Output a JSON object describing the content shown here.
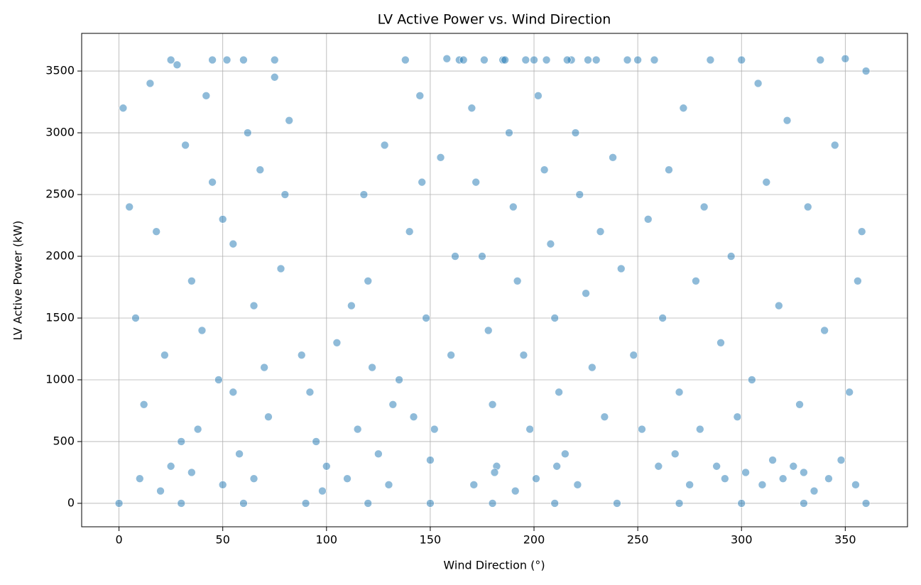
{
  "chart_data": {
    "type": "scatter",
    "title": "LV Active Power vs. Wind Direction",
    "x_label": "Wind Direction (°)",
    "y_label": "LV Active Power (kW)",
    "color": "#1f77b4",
    "alpha": 0.5,
    "grid": true,
    "xlim": [
      -18,
      380
    ],
    "ylim": [
      -190,
      3805
    ],
    "xticks": [
      0,
      50,
      100,
      150,
      200,
      250,
      300,
      350
    ],
    "yticks": [
      0,
      500,
      1000,
      1500,
      2000,
      2500,
      3000,
      3500
    ],
    "x": [
      0,
      30,
      60,
      90,
      120,
      150,
      180,
      210,
      240,
      270,
      300,
      330,
      360,
      2,
      5,
      8,
      12,
      15,
      18,
      22,
      25,
      28,
      32,
      35,
      38,
      42,
      45,
      48,
      52,
      55,
      58,
      62,
      65,
      68,
      72,
      75,
      78,
      82,
      20,
      30,
      40,
      50,
      60,
      70,
      80,
      10,
      25,
      45,
      55,
      65,
      75,
      35,
      50,
      88,
      92,
      95,
      100,
      105,
      110,
      115,
      118,
      120,
      125,
      128,
      130,
      135,
      138,
      140,
      142,
      145,
      148,
      150,
      155,
      158,
      160,
      162,
      112,
      132,
      146,
      98,
      122,
      152,
      164,
      166,
      170,
      172,
      175,
      178,
      180,
      182,
      185,
      188,
      190,
      192,
      195,
      198,
      200,
      202,
      205,
      208,
      210,
      212,
      215,
      218,
      220,
      222,
      225,
      228,
      230,
      232,
      234,
      176,
      186,
      196,
      206,
      216,
      226,
      171,
      181,
      191,
      201,
      211,
      221,
      238,
      242,
      245,
      248,
      250,
      252,
      255,
      258,
      260,
      262,
      265,
      268,
      270,
      272,
      275,
      278,
      280,
      282,
      285,
      288,
      290,
      292,
      295,
      298,
      300,
      302,
      305,
      308,
      310,
      312,
      315,
      318,
      320,
      322,
      325,
      328,
      330,
      332,
      335,
      338,
      340,
      342,
      345,
      348,
      350,
      352,
      355,
      358,
      360,
      356
    ],
    "y": [
      0,
      0,
      0,
      0,
      0,
      0,
      0,
      0,
      0,
      0,
      0,
      0,
      0,
      3200,
      2400,
      1500,
      800,
      3400,
      2200,
      1200,
      300,
      3550,
      2900,
      1800,
      600,
      3300,
      2600,
      1000,
      3590,
      2100,
      400,
      3000,
      1600,
      2700,
      700,
      3450,
      1900,
      3100,
      100,
      500,
      1400,
      2300,
      3590,
      1100,
      2500,
      200,
      3590,
      3590,
      900,
      200,
      3590,
      250,
      150,
      1200,
      900,
      500,
      300,
      1300,
      200,
      600,
      2500,
      1800,
      400,
      2900,
      150,
      1000,
      3590,
      2200,
      700,
      3300,
      1500,
      350,
      2800,
      3600,
      1200,
      2000,
      1600,
      800,
      2600,
      100,
      1100,
      600,
      3590,
      3590,
      3200,
      2600,
      2000,
      1400,
      800,
      300,
      3590,
      3000,
      2400,
      1800,
      1200,
      600,
      3590,
      3300,
      2700,
      2100,
      1500,
      900,
      400,
      3590,
      3000,
      2500,
      1700,
      1100,
      3590,
      2200,
      700,
      3590,
      3590,
      3590,
      3590,
      3590,
      3590,
      150,
      250,
      100,
      200,
      300,
      150,
      2800,
      1900,
      3590,
      1200,
      3590,
      600,
      2300,
      3590,
      300,
      1500,
      2700,
      400,
      900,
      3200,
      150,
      1800,
      600,
      2400,
      3590,
      300,
      1300,
      200,
      2000,
      700,
      3590,
      250,
      1000,
      3400,
      150,
      2600,
      350,
      1600,
      200,
      3100,
      300,
      800,
      250,
      2400,
      100,
      3590,
      1400,
      200,
      2900,
      350,
      3600,
      900,
      150,
      2200,
      3500,
      1800
    ]
  }
}
